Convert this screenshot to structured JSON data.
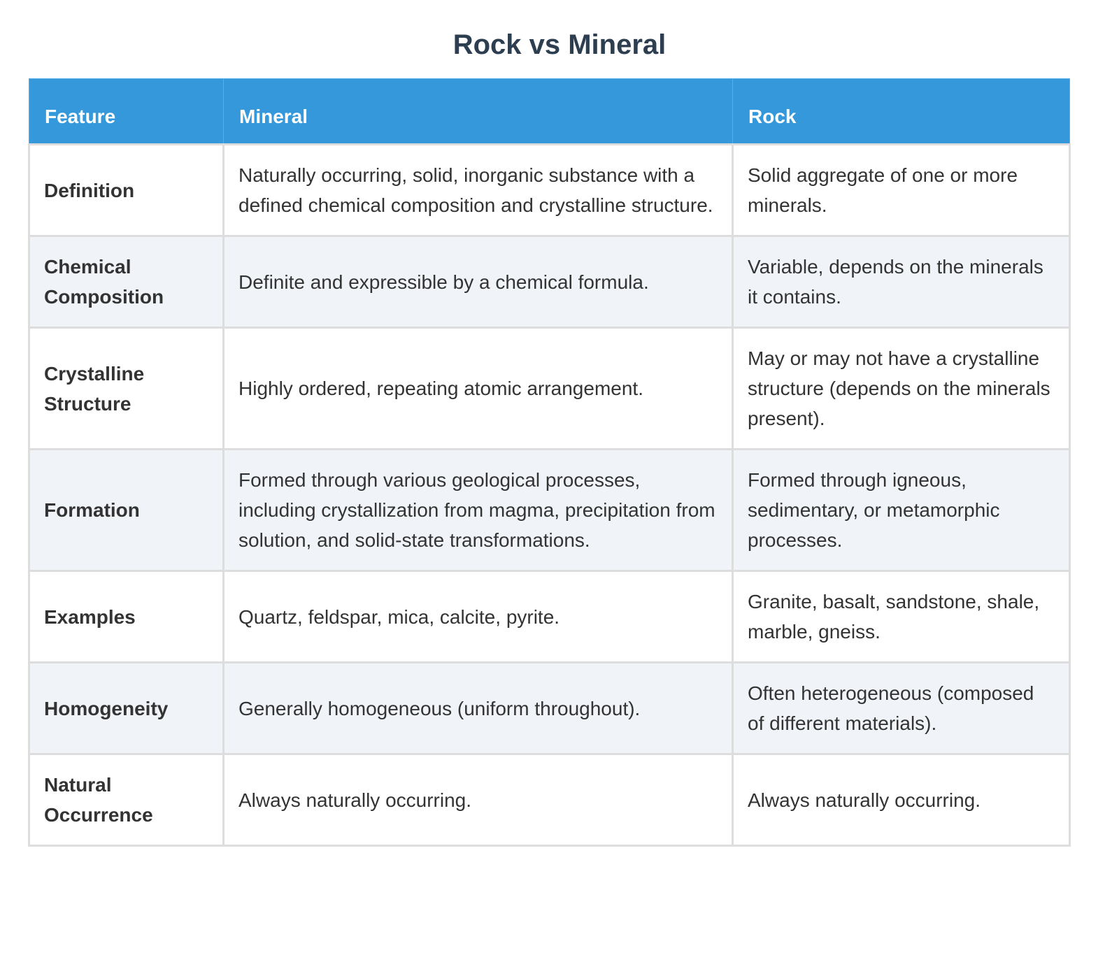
{
  "title": "Rock vs Mineral",
  "colors": {
    "header_bg": "#3498db",
    "header_text": "#ffffff",
    "title_text": "#2c3e50",
    "alt_row_bg": "#f0f4f9",
    "border": "#dddddd"
  },
  "table": {
    "headers": [
      "Feature",
      "Mineral",
      "Rock"
    ],
    "rows": [
      {
        "feature": "Definition",
        "mineral": "Naturally occurring, solid, inorganic substance with a defined chemical composition and crystalline structure.",
        "rock": "Solid aggregate of one or more minerals."
      },
      {
        "feature": "Chemical Composition",
        "mineral": "Definite and expressible by a chemical formula.",
        "rock": "Variable, depends on the minerals it contains."
      },
      {
        "feature": "Crystalline Structure",
        "mineral": "Highly ordered, repeating atomic arrangement.",
        "rock": "May or may not have a crystalline structure (depends on the minerals present)."
      },
      {
        "feature": "Formation",
        "mineral": "Formed through various geological processes, including crystallization from magma, precipitation from solution, and solid-state transformations.",
        "rock": "Formed through igneous, sedimentary, or metamorphic processes."
      },
      {
        "feature": "Examples",
        "mineral": "Quartz, feldspar, mica, calcite, pyrite.",
        "rock": "Granite, basalt, sandstone, shale, marble, gneiss."
      },
      {
        "feature": "Homogeneity",
        "mineral": "Generally homogeneous (uniform throughout).",
        "rock": "Often heterogeneous (composed of different materials)."
      },
      {
        "feature": "Natural Occurrence",
        "mineral": "Always naturally occurring.",
        "rock": "Always naturally occurring."
      }
    ]
  }
}
